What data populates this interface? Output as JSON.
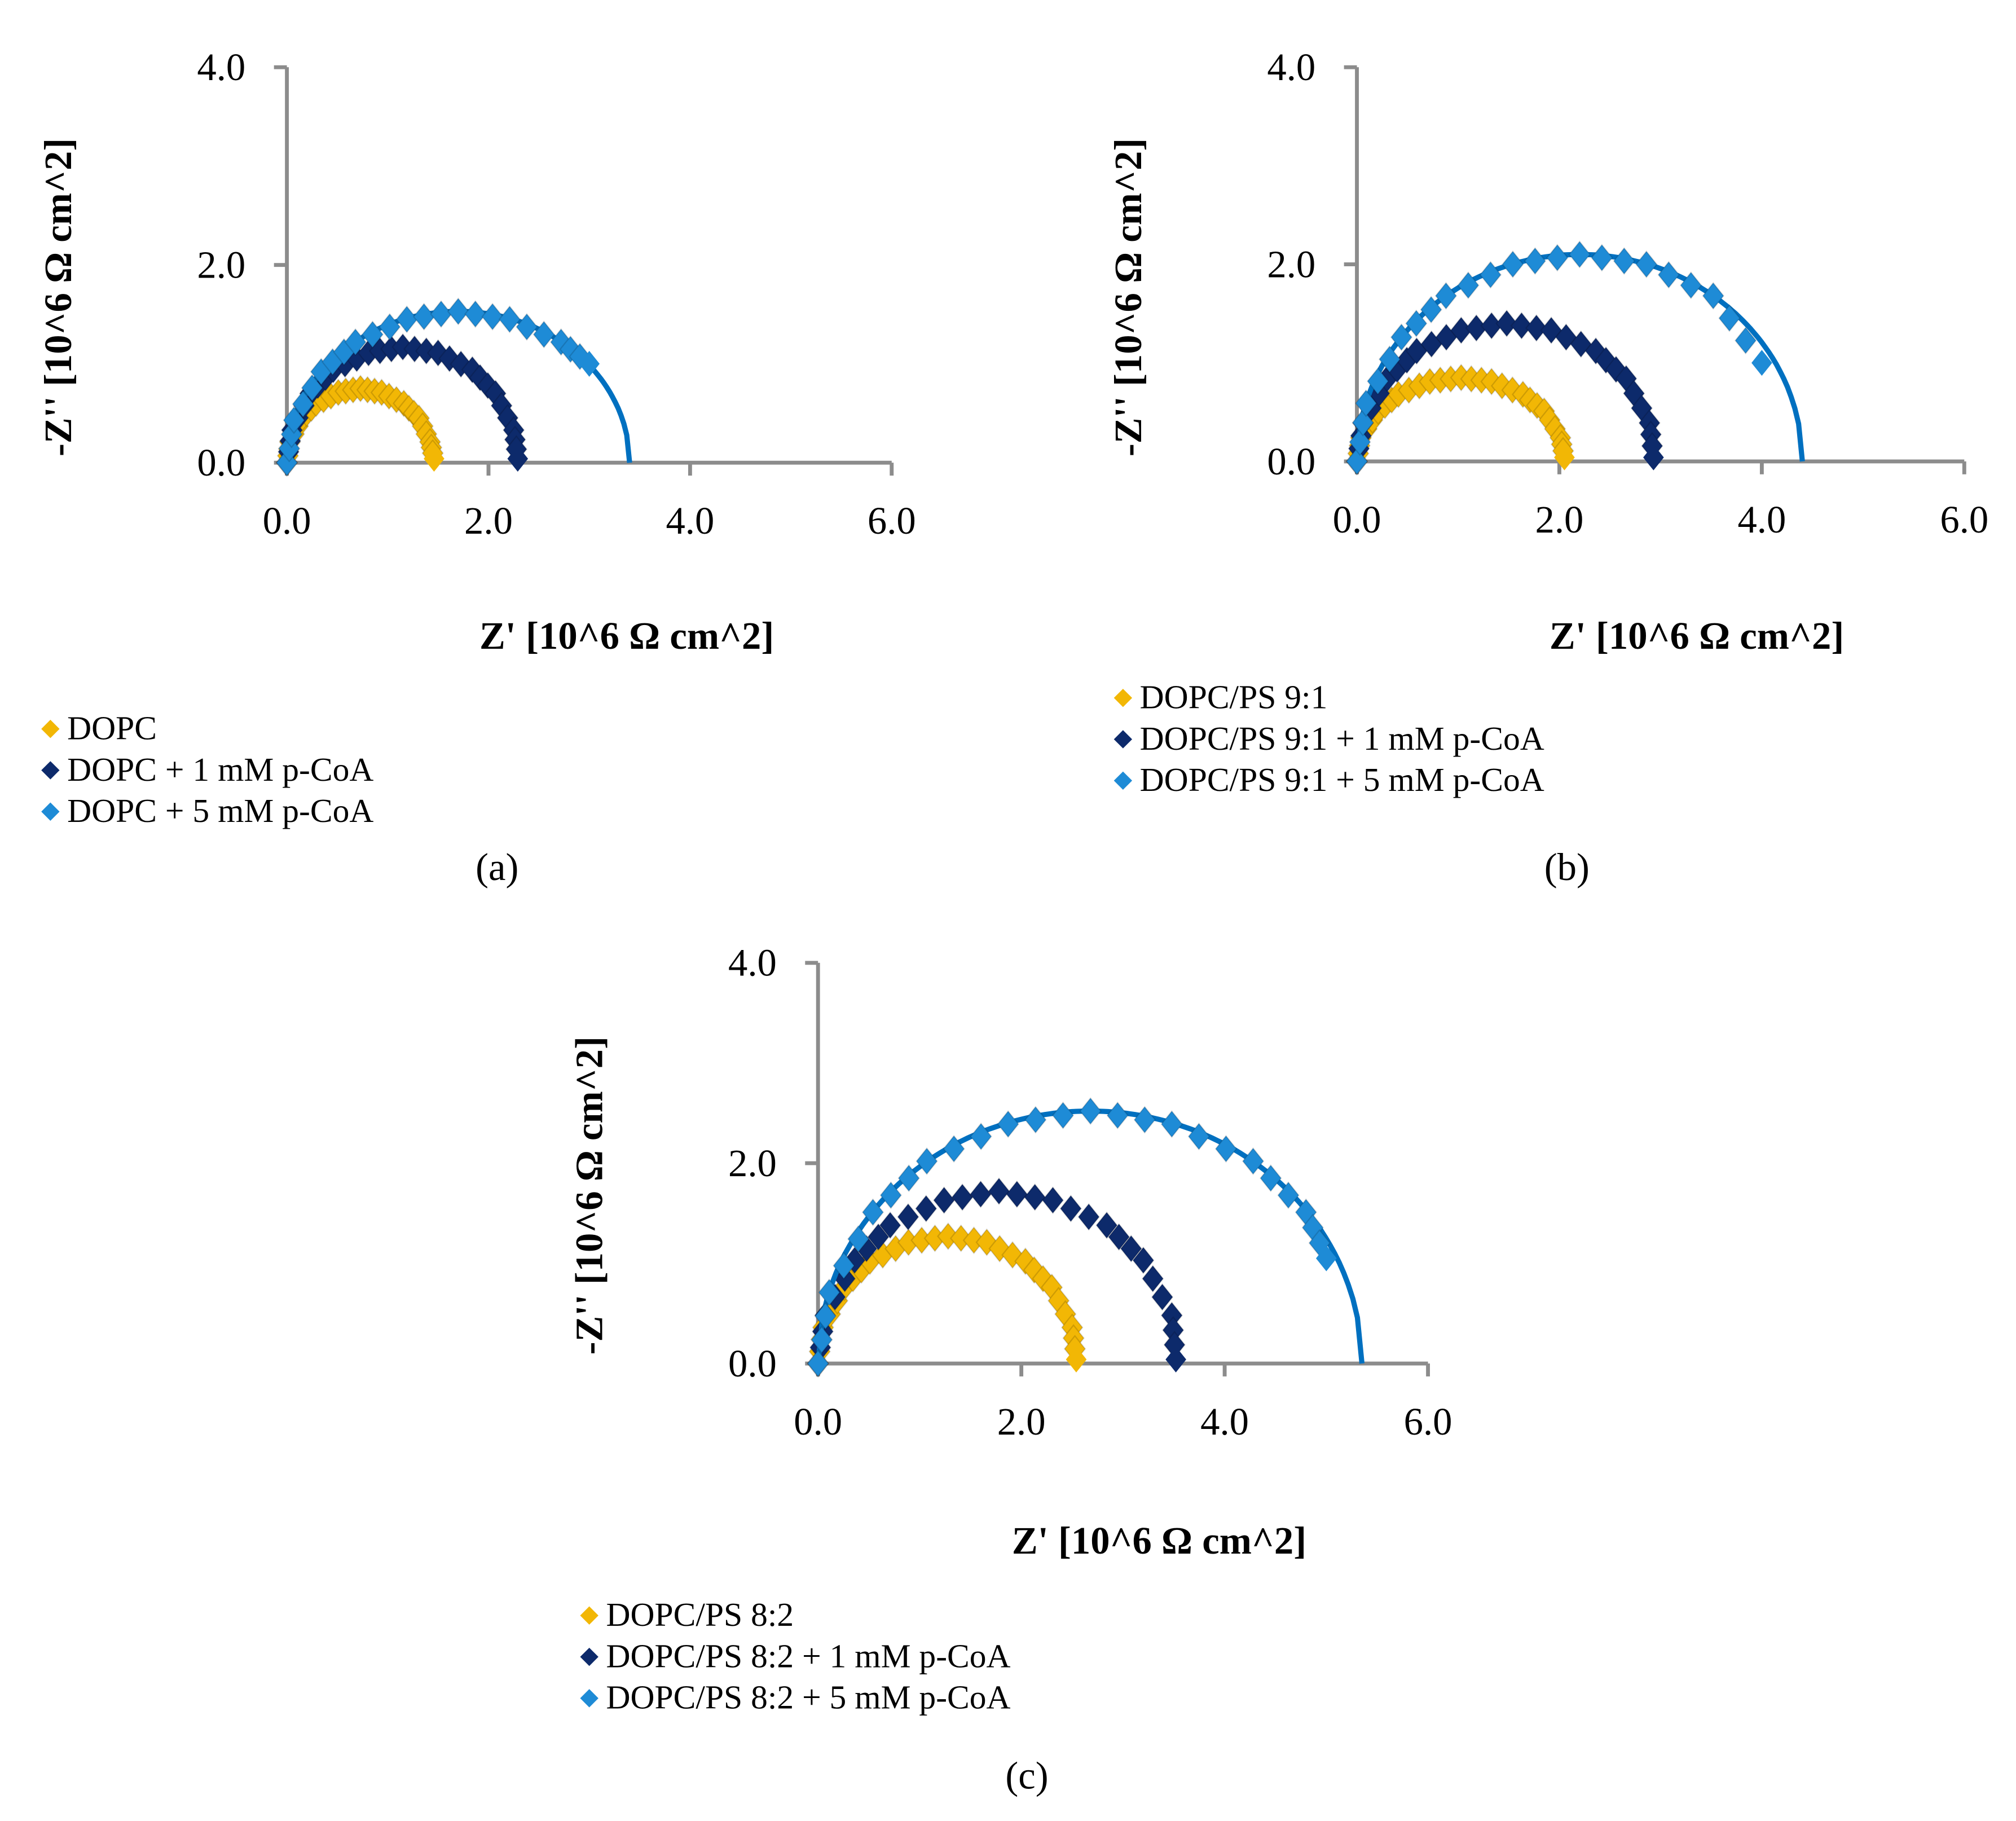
{
  "colors": {
    "axis": "#8c8c8c",
    "yellow": "#F2B705",
    "navy": "#0D2A6B",
    "light_blue": "#1E8BD6",
    "fit_line": "#0070C0"
  },
  "chart_data": [
    {
      "type": "scatter",
      "panel_label": "(a)",
      "xlabel": "Z' [10^6 Ω cm^2]",
      "ylabel": "-Z'' [10^6 Ω cm^2]",
      "xlim": [
        0,
        6
      ],
      "ylim": [
        0,
        4
      ],
      "xticks": [
        "0.0",
        "2.0",
        "4.0",
        "6.0"
      ],
      "yticks": [
        "0.0",
        "2.0",
        "4.0"
      ],
      "legend_position": "bottom-left",
      "series": [
        {
          "name": "DOPC",
          "color": "yellow",
          "x": [
            0.03,
            0.15,
            0.29,
            0.51,
            0.73,
            0.94,
            1.16,
            1.31,
            1.42
          ],
          "y": [
            0.21,
            0.45,
            0.6,
            0.71,
            0.75,
            0.71,
            0.6,
            0.45,
            0.21
          ]
        },
        {
          "name": "DOPC + 1 mM p-CoA",
          "color": "navy",
          "x": [
            0.05,
            0.23,
            0.46,
            0.81,
            1.15,
            1.5,
            1.84,
            2.07,
            2.25
          ],
          "y": [
            0.33,
            0.7,
            0.94,
            1.11,
            1.17,
            1.11,
            0.94,
            0.7,
            0.33
          ]
        },
        {
          "name": "DOPC + 5 mM p-CoA",
          "color": "light_blue",
          "x": [
            0.07,
            0.34,
            0.68,
            1.19,
            1.7,
            2.21,
            2.72,
            3.0
          ],
          "y": [
            0.43,
            0.92,
            1.22,
            1.45,
            1.53,
            1.45,
            1.22,
            1.0
          ],
          "fit": {
            "intercept": 3.4,
            "peak": 1.53
          }
        }
      ]
    },
    {
      "type": "scatter",
      "panel_label": "(b)",
      "xlabel": "Z' [10^6 Ω cm^2]",
      "ylabel": "-Z'' [10^6 Ω cm^2]",
      "xlim": [
        0,
        6
      ],
      "ylim": [
        0,
        4
      ],
      "xticks": [
        "0.0",
        "2.0",
        "4.0",
        "6.0"
      ],
      "yticks": [
        "0.0",
        "2.0",
        "4.0"
      ],
      "legend_position": "bottom-left",
      "series": [
        {
          "name": "DOPC/PS 9:1",
          "color": "yellow",
          "x": [
            0.04,
            0.21,
            0.41,
            0.72,
            1.03,
            1.33,
            1.64,
            1.85,
            2.01
          ],
          "y": [
            0.24,
            0.51,
            0.68,
            0.81,
            0.85,
            0.81,
            0.68,
            0.51,
            0.24
          ]
        },
        {
          "name": "DOPC/PS 9:1 + 1 mM p-CoA",
          "color": "navy",
          "x": [
            0.06,
            0.3,
            0.59,
            1.03,
            1.48,
            1.92,
            2.36,
            2.66,
            2.89
          ],
          "y": [
            0.39,
            0.84,
            1.12,
            1.33,
            1.4,
            1.33,
            1.12,
            0.84,
            0.39
          ]
        },
        {
          "name": "DOPC/PS 9:1 + 5 mM p-CoA",
          "color": "light_blue",
          "x": [
            0.09,
            0.44,
            0.88,
            1.54,
            2.2,
            2.86,
            3.52,
            4.0
          ],
          "y": [
            0.59,
            1.26,
            1.68,
            2.0,
            2.1,
            2.0,
            1.68,
            1.0
          ],
          "fit": {
            "intercept": 4.4,
            "peak": 2.1
          }
        }
      ]
    },
    {
      "type": "scatter",
      "panel_label": "(c)",
      "xlabel": "Z' [10^6 Ω cm^2]",
      "ylabel": "-Z'' [10^6 Ω cm^2]",
      "xlim": [
        0,
        6
      ],
      "ylim": [
        0,
        4
      ],
      "xticks": [
        "0.0",
        "2.0",
        "4.0",
        "6.0"
      ],
      "yticks": [
        "0.0",
        "2.0",
        "4.0"
      ],
      "legend_position": "bottom-left",
      "series": [
        {
          "name": "DOPC/PS 8:2",
          "color": "yellow",
          "x": [
            0.05,
            0.26,
            0.51,
            0.89,
            1.28,
            1.66,
            2.04,
            2.3,
            2.5
          ],
          "y": [
            0.36,
            0.76,
            1.02,
            1.21,
            1.27,
            1.21,
            1.02,
            0.76,
            0.36
          ]
        },
        {
          "name": "DOPC/PS 8:2 + 1 mM p-CoA",
          "color": "navy",
          "x": [
            0.07,
            0.36,
            0.71,
            1.24,
            1.78,
            2.31,
            2.84,
            3.2,
            3.48
          ],
          "y": [
            0.48,
            1.03,
            1.38,
            1.63,
            1.72,
            1.63,
            1.38,
            1.03,
            0.48
          ]
        },
        {
          "name": "DOPC/PS 8:2 + 5 mM p-CoA",
          "color": "light_blue",
          "x": [
            0.11,
            0.54,
            1.07,
            1.87,
            2.68,
            3.48,
            4.28,
            4.8,
            5.0
          ],
          "y": [
            0.71,
            1.51,
            2.02,
            2.39,
            2.52,
            2.39,
            2.02,
            1.51,
            1.05
          ],
          "fit": {
            "intercept": 5.35,
            "peak": 2.52
          }
        }
      ]
    }
  ]
}
